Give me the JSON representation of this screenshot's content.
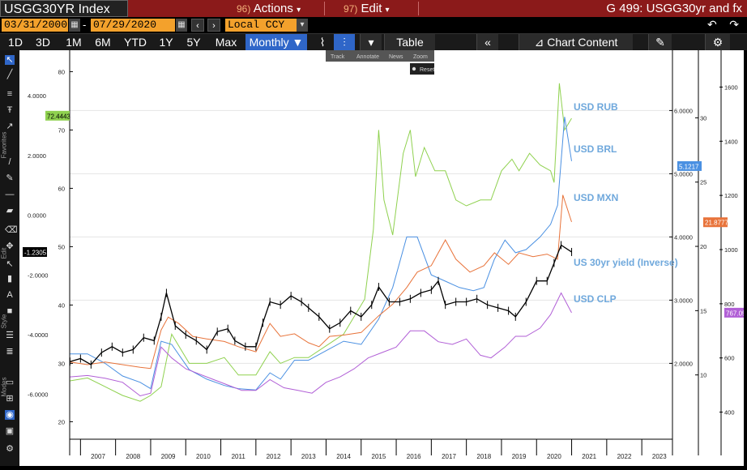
{
  "header": {
    "title": "USGG30YR Index",
    "menu_actions": {
      "num": "96)",
      "label": "Actions"
    },
    "menu_edit": {
      "num": "97)",
      "label": "Edit"
    },
    "right_title": "G 499: USGG30yr and fx"
  },
  "date_bar": {
    "start_date": "03/31/2000",
    "end_date": "07/29/2020",
    "currency": "Local CCY"
  },
  "toolbar": {
    "periods": [
      "1D",
      "3D",
      "1M",
      "6M",
      "YTD",
      "1Y",
      "5Y",
      "Max"
    ],
    "frequency": "Monthly",
    "table_label": "Table",
    "chart_content_label": "Chart Content"
  },
  "subtoolbar": {
    "items": [
      "Track",
      "Annotate",
      "News",
      "Zoom"
    ],
    "reset_label": "Reset"
  },
  "sidebar_labels": [
    "Favorites",
    "Edit",
    "Style",
    "Modes"
  ],
  "chart_data": {
    "type": "line",
    "x_tick_labels": [
      "2007",
      "2008",
      "2009",
      "2010",
      "2011",
      "2012",
      "2013",
      "2014",
      "2015",
      "2016",
      "2017",
      "2018",
      "2019",
      "2020",
      "2021",
      "2022",
      "2023"
    ],
    "axes": {
      "a1": {
        "side": "left-outer",
        "ticks": [
          "4.0000",
          "2.0000",
          "0.0000",
          "-2.0000",
          "-4.0000",
          "-6.0000"
        ],
        "values": [
          4,
          2,
          0,
          -2,
          -4,
          -6
        ],
        "range": [
          -7.5,
          5.2
        ]
      },
      "a2": {
        "side": "left-inner",
        "ticks": [
          "80",
          "70",
          "60",
          "50",
          "40",
          "30",
          "20"
        ],
        "values": [
          80,
          70,
          60,
          50,
          40,
          30,
          20
        ],
        "range": [
          17,
          82
        ]
      },
      "a3": {
        "side": "right-inner",
        "ticks": [
          "6.0000",
          "5.0000",
          "4.0000",
          "3.0000",
          "2.0000"
        ],
        "values": [
          6,
          5,
          4,
          3,
          2
        ],
        "range": [
          0.8,
          6.8
        ]
      },
      "a4": {
        "side": "right-middle",
        "ticks": [
          "30",
          "25",
          "20",
          "15",
          "10"
        ],
        "values": [
          30,
          25,
          20,
          15,
          10
        ],
        "range": [
          5,
          34.5
        ]
      },
      "a5": {
        "side": "right-outer",
        "ticks": [
          "1600",
          "1400",
          "1200",
          "1000",
          "800",
          "600",
          "400"
        ],
        "values": [
          1600,
          1400,
          1200,
          1000,
          800,
          600,
          400
        ],
        "range": [
          300,
          1700
        ]
      }
    },
    "last_value_tags": [
      {
        "label": "72.4443",
        "axis": "a2",
        "value": 72.4443,
        "color": "#8fd14f"
      },
      {
        "label": "-1.2305",
        "axis": "a1",
        "value": -1.2305,
        "color": "#000000"
      },
      {
        "label": "5.1217",
        "axis": "a3",
        "value": 5.1217,
        "color": "#4a90e2"
      },
      {
        "label": "21.8777",
        "axis": "a4",
        "value": 21.8777,
        "color": "#e8733a"
      },
      {
        "label": "767.05",
        "axis": "a5",
        "value": 767.05,
        "color": "#b15fd6"
      }
    ],
    "series": [
      {
        "name": "USD RUB",
        "axis": "a2",
        "color": "#8fd14f",
        "label_color": "#6fa8dc",
        "x": [
          2006.2,
          2006.7,
          2007.2,
          2007.7,
          2008.2,
          2008.5,
          2008.8,
          2009.1,
          2009.6,
          2010.1,
          2010.6,
          2011.0,
          2011.5,
          2011.9,
          2012.2,
          2012.6,
          2013.0,
          2013.5,
          2014.0,
          2014.3,
          2014.6,
          2014.85,
          2015.0,
          2015.15,
          2015.4,
          2015.7,
          2015.9,
          2016.05,
          2016.3,
          2016.6,
          2016.9,
          2017.2,
          2017.5,
          2017.9,
          2018.2,
          2018.5,
          2018.8,
          2019.0,
          2019.3,
          2019.6,
          2019.9,
          2020.0,
          2020.15,
          2020.3,
          2020.5
        ],
        "y": [
          27,
          27.5,
          26,
          24.5,
          23.5,
          24.5,
          26,
          35,
          30,
          30,
          31,
          28,
          28,
          32,
          30,
          31,
          31,
          33,
          35,
          38,
          41,
          53,
          70,
          58,
          52,
          66,
          70,
          62,
          67,
          63,
          63,
          58,
          57,
          58,
          58,
          63,
          65,
          63,
          66,
          64,
          63,
          61,
          78,
          70,
          72
        ]
      },
      {
        "name": "USD BRL",
        "axis": "a3",
        "color": "#4a90e2",
        "label_color": "#6fa8dc",
        "x": [
          2006.2,
          2006.7,
          2007.2,
          2007.7,
          2008.2,
          2008.5,
          2008.8,
          2009.1,
          2009.6,
          2010.1,
          2010.6,
          2011.0,
          2011.5,
          2011.9,
          2012.2,
          2012.6,
          2013.0,
          2013.5,
          2014.0,
          2014.5,
          2015.0,
          2015.4,
          2015.8,
          2016.1,
          2016.5,
          2016.9,
          2017.3,
          2017.7,
          2018.0,
          2018.3,
          2018.6,
          2018.9,
          2019.2,
          2019.6,
          2019.9,
          2020.1,
          2020.3,
          2020.5
        ],
        "y": [
          2.15,
          2.15,
          2.0,
          1.8,
          1.7,
          1.6,
          2.35,
          2.3,
          1.9,
          1.75,
          1.65,
          1.6,
          1.58,
          1.85,
          1.75,
          2.05,
          2.05,
          2.2,
          2.35,
          2.3,
          2.7,
          3.2,
          4.0,
          4.0,
          3.4,
          3.3,
          3.2,
          3.15,
          3.2,
          3.65,
          3.95,
          3.75,
          3.8,
          4.0,
          4.2,
          4.5,
          5.9,
          5.2
        ]
      },
      {
        "name": "USD MXN",
        "axis": "a4",
        "color": "#e8733a",
        "label_color": "#6fa8dc",
        "x": [
          2006.2,
          2006.7,
          2007.2,
          2007.7,
          2008.2,
          2008.5,
          2008.8,
          2009.0,
          2009.3,
          2009.7,
          2010.1,
          2010.6,
          2011.0,
          2011.5,
          2011.9,
          2012.2,
          2012.6,
          2013.0,
          2013.3,
          2013.6,
          2014.0,
          2014.5,
          2015.0,
          2015.4,
          2015.8,
          2016.1,
          2016.5,
          2016.9,
          2017.2,
          2017.6,
          2018.0,
          2018.3,
          2018.7,
          2019.0,
          2019.4,
          2019.8,
          2020.1,
          2020.25,
          2020.5
        ],
        "y": [
          11.0,
          10.8,
          11.0,
          10.8,
          10.6,
          10.5,
          13.5,
          14.5,
          14,
          13,
          12.8,
          12.6,
          12.2,
          11.8,
          14.0,
          13.0,
          13.2,
          12.5,
          12.2,
          13.0,
          13.1,
          13.3,
          14.6,
          15.5,
          16.8,
          18.0,
          18.5,
          20.5,
          19.0,
          18.0,
          18.5,
          19.5,
          18.6,
          19.5,
          19.2,
          19.4,
          19.0,
          24.0,
          21.9
        ]
      },
      {
        "name": "US 30yr yield (Inverse)",
        "axis": "a1",
        "color": "#000000",
        "label_color": "#6fa8dc",
        "x": [
          2006.2,
          2006.5,
          2006.8,
          2007.1,
          2007.4,
          2007.7,
          2008.0,
          2008.3,
          2008.6,
          2008.8,
          2008.95,
          2009.2,
          2009.5,
          2009.8,
          2010.1,
          2010.4,
          2010.7,
          2010.9,
          2011.2,
          2011.5,
          2011.7,
          2011.9,
          2012.2,
          2012.5,
          2012.8,
          2013.0,
          2013.3,
          2013.6,
          2013.9,
          2014.2,
          2014.5,
          2014.8,
          2015.0,
          2015.3,
          2015.6,
          2015.9,
          2016.2,
          2016.5,
          2016.7,
          2016.9,
          2017.2,
          2017.5,
          2017.8,
          2018.1,
          2018.4,
          2018.7,
          2018.9,
          2019.2,
          2019.5,
          2019.8,
          2020.0,
          2020.2,
          2020.5
        ],
        "y": [
          -4.9,
          -4.8,
          -5.0,
          -4.6,
          -4.4,
          -4.6,
          -4.5,
          -4.1,
          -4.2,
          -3.4,
          -2.6,
          -3.7,
          -4.0,
          -4.2,
          -4.5,
          -3.9,
          -3.8,
          -4.2,
          -4.4,
          -4.4,
          -3.6,
          -2.9,
          -3.0,
          -2.7,
          -2.9,
          -3.1,
          -3.4,
          -3.8,
          -3.6,
          -3.2,
          -3.4,
          -3.0,
          -2.4,
          -2.9,
          -2.9,
          -2.8,
          -2.6,
          -2.5,
          -2.2,
          -3.0,
          -2.9,
          -2.9,
          -2.8,
          -3.0,
          -3.1,
          -3.2,
          -3.4,
          -2.9,
          -2.2,
          -2.2,
          -1.6,
          -1.0,
          -1.23
        ]
      },
      {
        "name": "USD CLP",
        "axis": "a5",
        "color": "#b15fd6",
        "label_color": "#6fa8dc",
        "x": [
          2006.2,
          2006.7,
          2007.2,
          2007.7,
          2008.2,
          2008.5,
          2008.8,
          2009.1,
          2009.5,
          2009.9,
          2010.3,
          2010.7,
          2011.1,
          2011.5,
          2011.9,
          2012.3,
          2012.7,
          2013.1,
          2013.5,
          2013.9,
          2014.3,
          2014.7,
          2015.1,
          2015.5,
          2015.9,
          2016.3,
          2016.7,
          2017.1,
          2017.5,
          2017.9,
          2018.2,
          2018.6,
          2018.9,
          2019.2,
          2019.6,
          2019.9,
          2020.2,
          2020.5
        ],
        "y": [
          530,
          535,
          525,
          510,
          460,
          470,
          640,
          600,
          560,
          540,
          520,
          500,
          480,
          480,
          520,
          490,
          480,
          470,
          510,
          530,
          560,
          600,
          620,
          640,
          700,
          700,
          660,
          650,
          670,
          610,
          600,
          640,
          680,
          680,
          710,
          760,
          840,
          767
        ]
      }
    ]
  }
}
